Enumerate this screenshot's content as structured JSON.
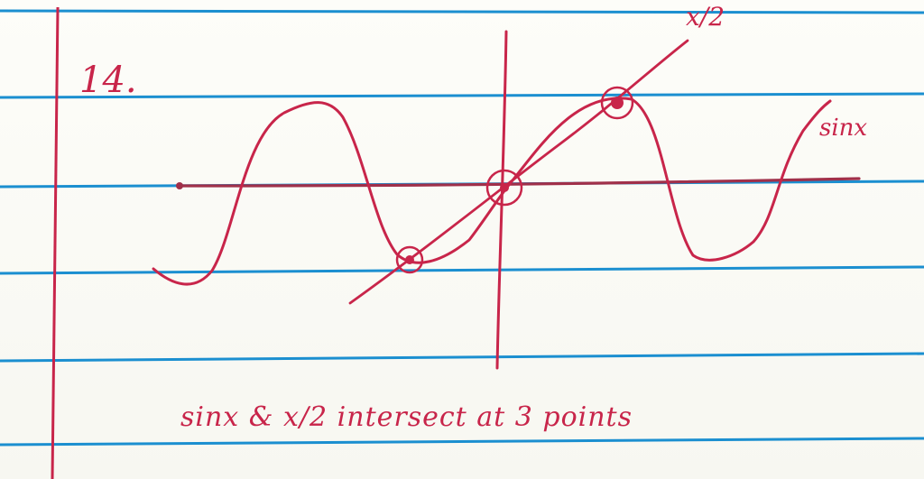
{
  "problem": {
    "number": "14."
  },
  "graph": {
    "curve_label": "sinx",
    "line_label": "x/2",
    "ink_color": "#c8254a",
    "rule_color": "#1b8fd0",
    "margin_color": "#c8254a"
  },
  "caption": {
    "text": "sinx & x/2 intersect at 3 points"
  }
}
